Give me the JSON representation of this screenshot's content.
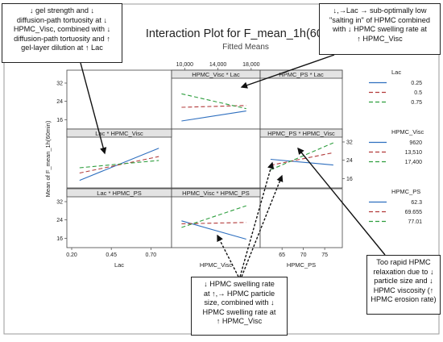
{
  "chart_data": {
    "type": "line",
    "title": "Interaction Plot for F_mean_1h(60min)",
    "subtitle": "Fitted Means",
    "ylabel": "Mean of F_mean_1h(60min)",
    "ylim": [
      14,
      32
    ],
    "yticks": [
      16,
      24,
      32
    ],
    "grid": false,
    "legend_position": "right",
    "factors": [
      {
        "name": "Lac",
        "xlabel": "Lac",
        "xlim": [
          0.2,
          0.8
        ],
        "xticks": [
          "0.20",
          "0.45",
          "0.70"
        ],
        "legend": [
          {
            "level": "0.25",
            "color": "#2e6fbf",
            "dash": "solid"
          },
          {
            "level": "0.5",
            "color": "#b23a3a",
            "dash": "dashed"
          },
          {
            "level": "0.75",
            "color": "#2e9e3e",
            "dash": "dashed"
          }
        ]
      },
      {
        "name": "HPMC_Visc",
        "xlabel": "HPMC_Visc",
        "xlim": [
          9000,
          18500
        ],
        "xticks": [
          "10,000",
          "14,000",
          "18,000"
        ],
        "legend": [
          {
            "level": "9620",
            "color": "#2e6fbf",
            "dash": "solid"
          },
          {
            "level": "13,510",
            "color": "#b23a3a",
            "dash": "dashed"
          },
          {
            "level": "17,400",
            "color": "#2e9e3e",
            "dash": "dashed"
          }
        ]
      },
      {
        "name": "HPMC_PS",
        "xlabel": "HPMC_PS",
        "xlim": [
          61,
          78
        ],
        "xticks": [
          "65",
          "70",
          "75"
        ],
        "legend": [
          {
            "level": "62.3",
            "color": "#2e6fbf",
            "dash": "solid"
          },
          {
            "level": "69.655",
            "color": "#b23a3a",
            "dash": "dashed"
          },
          {
            "level": "77.01",
            "color": "#2e9e3e",
            "dash": "dashed"
          }
        ]
      }
    ],
    "panels": [
      {
        "title": "HPMC_Visc * Lac",
        "row": 0,
        "col": 1,
        "x_factor": 1,
        "trace_factor": 0,
        "x": [
          9620,
          17400
        ],
        "series": [
          {
            "name": "0.25",
            "values": [
              15.4,
              19.8
            ]
          },
          {
            "name": "0.5",
            "values": [
              21.4,
              22.2
            ]
          },
          {
            "name": "0.75",
            "values": [
              27.3,
              20.8
            ]
          }
        ]
      },
      {
        "title": "HPMC_PS * Lac",
        "row": 0,
        "col": 2,
        "x_factor": 2,
        "trace_factor": 0,
        "x": [],
        "series": []
      },
      {
        "title": "Lac * HPMC_Visc",
        "row": 1,
        "col": 0,
        "x_factor": 0,
        "trace_factor": 1,
        "x": [
          0.25,
          0.75
        ],
        "series": [
          {
            "name": "9620",
            "values": [
              15.2,
              29.3
            ]
          },
          {
            "name": "13,510",
            "values": [
              18.4,
              25.6
            ]
          },
          {
            "name": "17,400",
            "values": [
              20.7,
              23.9
            ]
          }
        ]
      },
      {
        "title": "HPMC_PS * HPMC_Visc",
        "row": 1,
        "col": 2,
        "x_factor": 2,
        "trace_factor": 1,
        "x": [
          62.3,
          77.01
        ],
        "series": [
          {
            "name": "9620",
            "values": [
              24.4,
              21.9
            ]
          },
          {
            "name": "13,510",
            "values": [
              21.8,
              27.3
            ]
          },
          {
            "name": "17,400",
            "values": [
              19.8,
              31.6
            ]
          }
        ]
      },
      {
        "title": "Lac * HPMC_PS",
        "row": 2,
        "col": 0,
        "x_factor": 0,
        "trace_factor": 2,
        "x": [],
        "series": []
      },
      {
        "title": "HPMC_Visc * HPMC_PS",
        "row": 2,
        "col": 1,
        "x_factor": 1,
        "trace_factor": 2,
        "x": [
          9620,
          17400
        ],
        "series": [
          {
            "name": "62.3",
            "values": [
              23.6,
              15.6
            ]
          },
          {
            "name": "69.655",
            "values": [
              22.3,
              22.9
            ]
          },
          {
            "name": "77.01",
            "values": [
              20.7,
              30.2
            ]
          }
        ]
      }
    ]
  },
  "annotations": {
    "left_top": [
      "↓ gel strength and ↓",
      "diffusion-path tortuosity at ↓",
      "HPMC_Visc, combined with ↓",
      "diffusion-path tortuosity and ↑",
      "gel-layer dilution at ↑ Lac"
    ],
    "right_top": [
      "↓,→Lac → sub-optimally low",
      "\"salting in\" of HPMC combined",
      "with ↓ HPMC swelling rate at",
      "↑ HPMC_Visc"
    ],
    "right_bottom": [
      "Too rapid HPMC",
      "relaxation due to ↓",
      "particle size and ↓",
      "HPMC viscosity (↑",
      "HPMC erosion rate)"
    ],
    "bottom_center": [
      "↓ HPMC swelling rate",
      "at ↑,→ HPMC particle",
      "size, combined with ↓",
      "HPMC swelling rate at",
      "↑ HPMC_Visc"
    ]
  }
}
